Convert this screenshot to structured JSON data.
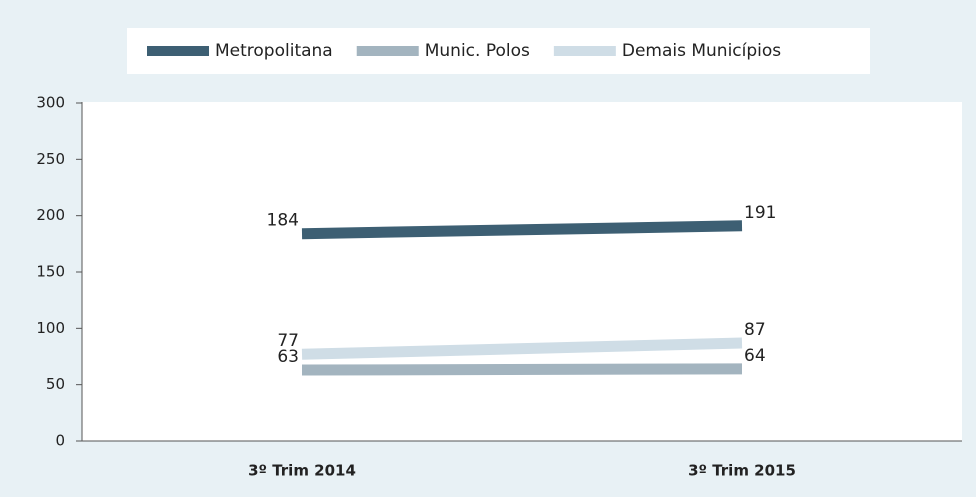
{
  "chart_data": {
    "type": "line",
    "categories": [
      "3º Trim 2014",
      "3º Trim 2015"
    ],
    "series": [
      {
        "name": "Metropolitana",
        "color": "#3d5f73",
        "values": [
          184,
          191
        ]
      },
      {
        "name": "Munic. Polos",
        "color": "#a3b4bf",
        "values": [
          63,
          64
        ]
      },
      {
        "name": "Demais Municípios",
        "color": "#cfdde6",
        "values": [
          77,
          87
        ]
      }
    ],
    "ylim": [
      0,
      300
    ],
    "yticks": [
      0,
      50,
      100,
      150,
      200,
      250,
      300
    ],
    "grid": false,
    "legend": "top"
  }
}
